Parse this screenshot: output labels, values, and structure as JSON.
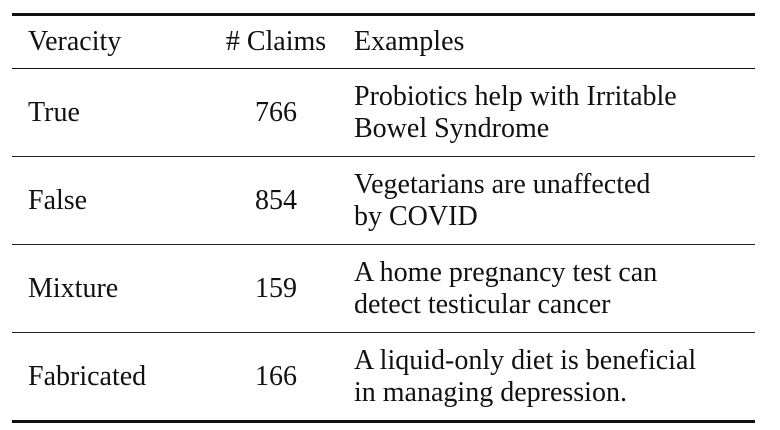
{
  "table": {
    "headers": [
      "Veracity",
      "# Claims",
      "Examples"
    ],
    "rows": [
      {
        "veracity": "True",
        "claims": "766",
        "example": "Probiotics help with Irritable\nBowel Syndrome"
      },
      {
        "veracity": "False",
        "claims": "854",
        "example": "Vegetarians are unaffected\nby COVID"
      },
      {
        "veracity": "Mixture",
        "claims": "159",
        "example": "A home pregnancy test can\ndetect testicular cancer"
      },
      {
        "veracity": "Fabricated",
        "claims": "166",
        "example": "A liquid-only diet is beneficial\nin managing depression."
      }
    ]
  }
}
